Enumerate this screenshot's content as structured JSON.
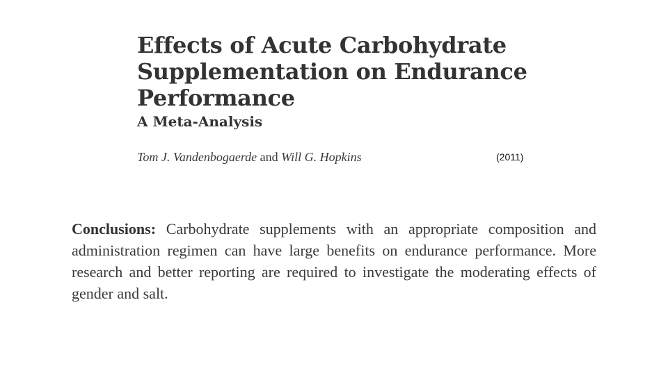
{
  "paper": {
    "title_lines": [
      "Effects of Acute Carbohydrate",
      "Supplementation on Endurance",
      "Performance"
    ],
    "subtitle": "A Meta-Analysis",
    "authors": {
      "author1": "Tom J. Vandenbogaerde",
      "separator": "and",
      "author2": "Will G. Hopkins"
    },
    "year": "(2011)",
    "conclusions": {
      "label": "Conclusions:",
      "text": "Carbohydrate supplements with an appropriate composition and administration regimen can have large benefits on endurance performance. More research and better reporting are required to investigate the moderating effects of gender and salt."
    }
  }
}
